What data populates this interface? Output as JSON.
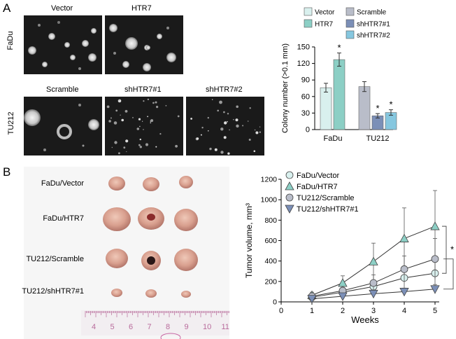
{
  "panel_a": {
    "label": "A",
    "cell_lines": [
      "FaDu",
      "TU212"
    ],
    "image_titles": {
      "fadu": [
        "Vector",
        "HTR7"
      ],
      "tu212": [
        "Scramble",
        "shHTR7#1",
        "shHTR7#2"
      ]
    }
  },
  "panel_b": {
    "label": "B",
    "tumor_rows": [
      "FaDu/Vector",
      "FaDu/HTR7",
      "TU212/Scramble",
      "TU212/shHTR7#1"
    ],
    "ruler_ticks": [
      "4",
      "5",
      "6",
      "7",
      "8",
      "9",
      "10",
      "11"
    ]
  },
  "colors": {
    "vector": "#d9f0ee",
    "htr7": "#8ccfc5",
    "scramble": "#b9bdc9",
    "sh1": "#7b8fb7",
    "sh2": "#86c7df"
  },
  "chart_data": [
    {
      "type": "bar",
      "ylabel": "Colony number (>0.1 mm)",
      "ylim": [
        0,
        150
      ],
      "yticks": [
        0,
        30,
        60,
        90,
        120,
        150
      ],
      "groups": [
        "FaDu",
        "TU212"
      ],
      "legend": [
        "Vector",
        "HTR7",
        "Scramble",
        "shHTR7#1",
        "shHTR7#2"
      ],
      "legend_placement": "top",
      "series": [
        {
          "name": "Vector",
          "group": "FaDu",
          "value": 76,
          "error": 8,
          "color": "#d9f0ee",
          "sig": ""
        },
        {
          "name": "HTR7",
          "group": "FaDu",
          "value": 127,
          "error": 12,
          "color": "#8ccfc5",
          "sig": "*"
        },
        {
          "name": "Scramble",
          "group": "TU212",
          "value": 78,
          "error": 9,
          "color": "#b9bdc9",
          "sig": ""
        },
        {
          "name": "shHTR7#1",
          "group": "TU212",
          "value": 25,
          "error": 4,
          "color": "#7b8fb7",
          "sig": "*"
        },
        {
          "name": "shHTR7#2",
          "group": "TU212",
          "value": 31,
          "error": 5,
          "color": "#86c7df",
          "sig": "*"
        }
      ]
    },
    {
      "type": "line",
      "xlabel": "Weeks",
      "ylabel": "Tumor volume, mm³",
      "xlim": [
        0,
        5
      ],
      "ylim": [
        0,
        1200
      ],
      "xticks": [
        0,
        1,
        2,
        3,
        4,
        5
      ],
      "yticks": [
        0,
        200,
        400,
        600,
        800,
        1000,
        1200
      ],
      "x": [
        1,
        2,
        3,
        4,
        5
      ],
      "legend_placement": "top-left",
      "series": [
        {
          "name": "FaDu/Vector",
          "marker": "circle",
          "fill": "#d9f0ee",
          "values": [
            45,
            95,
            150,
            235,
            280
          ],
          "errors": [
            20,
            40,
            60,
            100,
            110
          ]
        },
        {
          "name": "FaDu/HTR7",
          "marker": "triangle-up",
          "fill": "#8ccfc5",
          "values": [
            65,
            185,
            395,
            620,
            740
          ],
          "errors": [
            30,
            70,
            180,
            300,
            350
          ]
        },
        {
          "name": "TU212/Scramble",
          "marker": "circle",
          "fill": "#b9bdc9",
          "values": [
            55,
            110,
            185,
            320,
            420
          ],
          "errors": [
            25,
            40,
            80,
            130,
            200
          ]
        },
        {
          "name": "TU212/shHTR7#1",
          "marker": "triangle-down",
          "fill": "#7b8fb7",
          "values": [
            30,
            55,
            80,
            100,
            125
          ],
          "errors": [
            15,
            20,
            25,
            35,
            45
          ]
        }
      ],
      "annotations": [
        "*",
        "*"
      ]
    }
  ]
}
